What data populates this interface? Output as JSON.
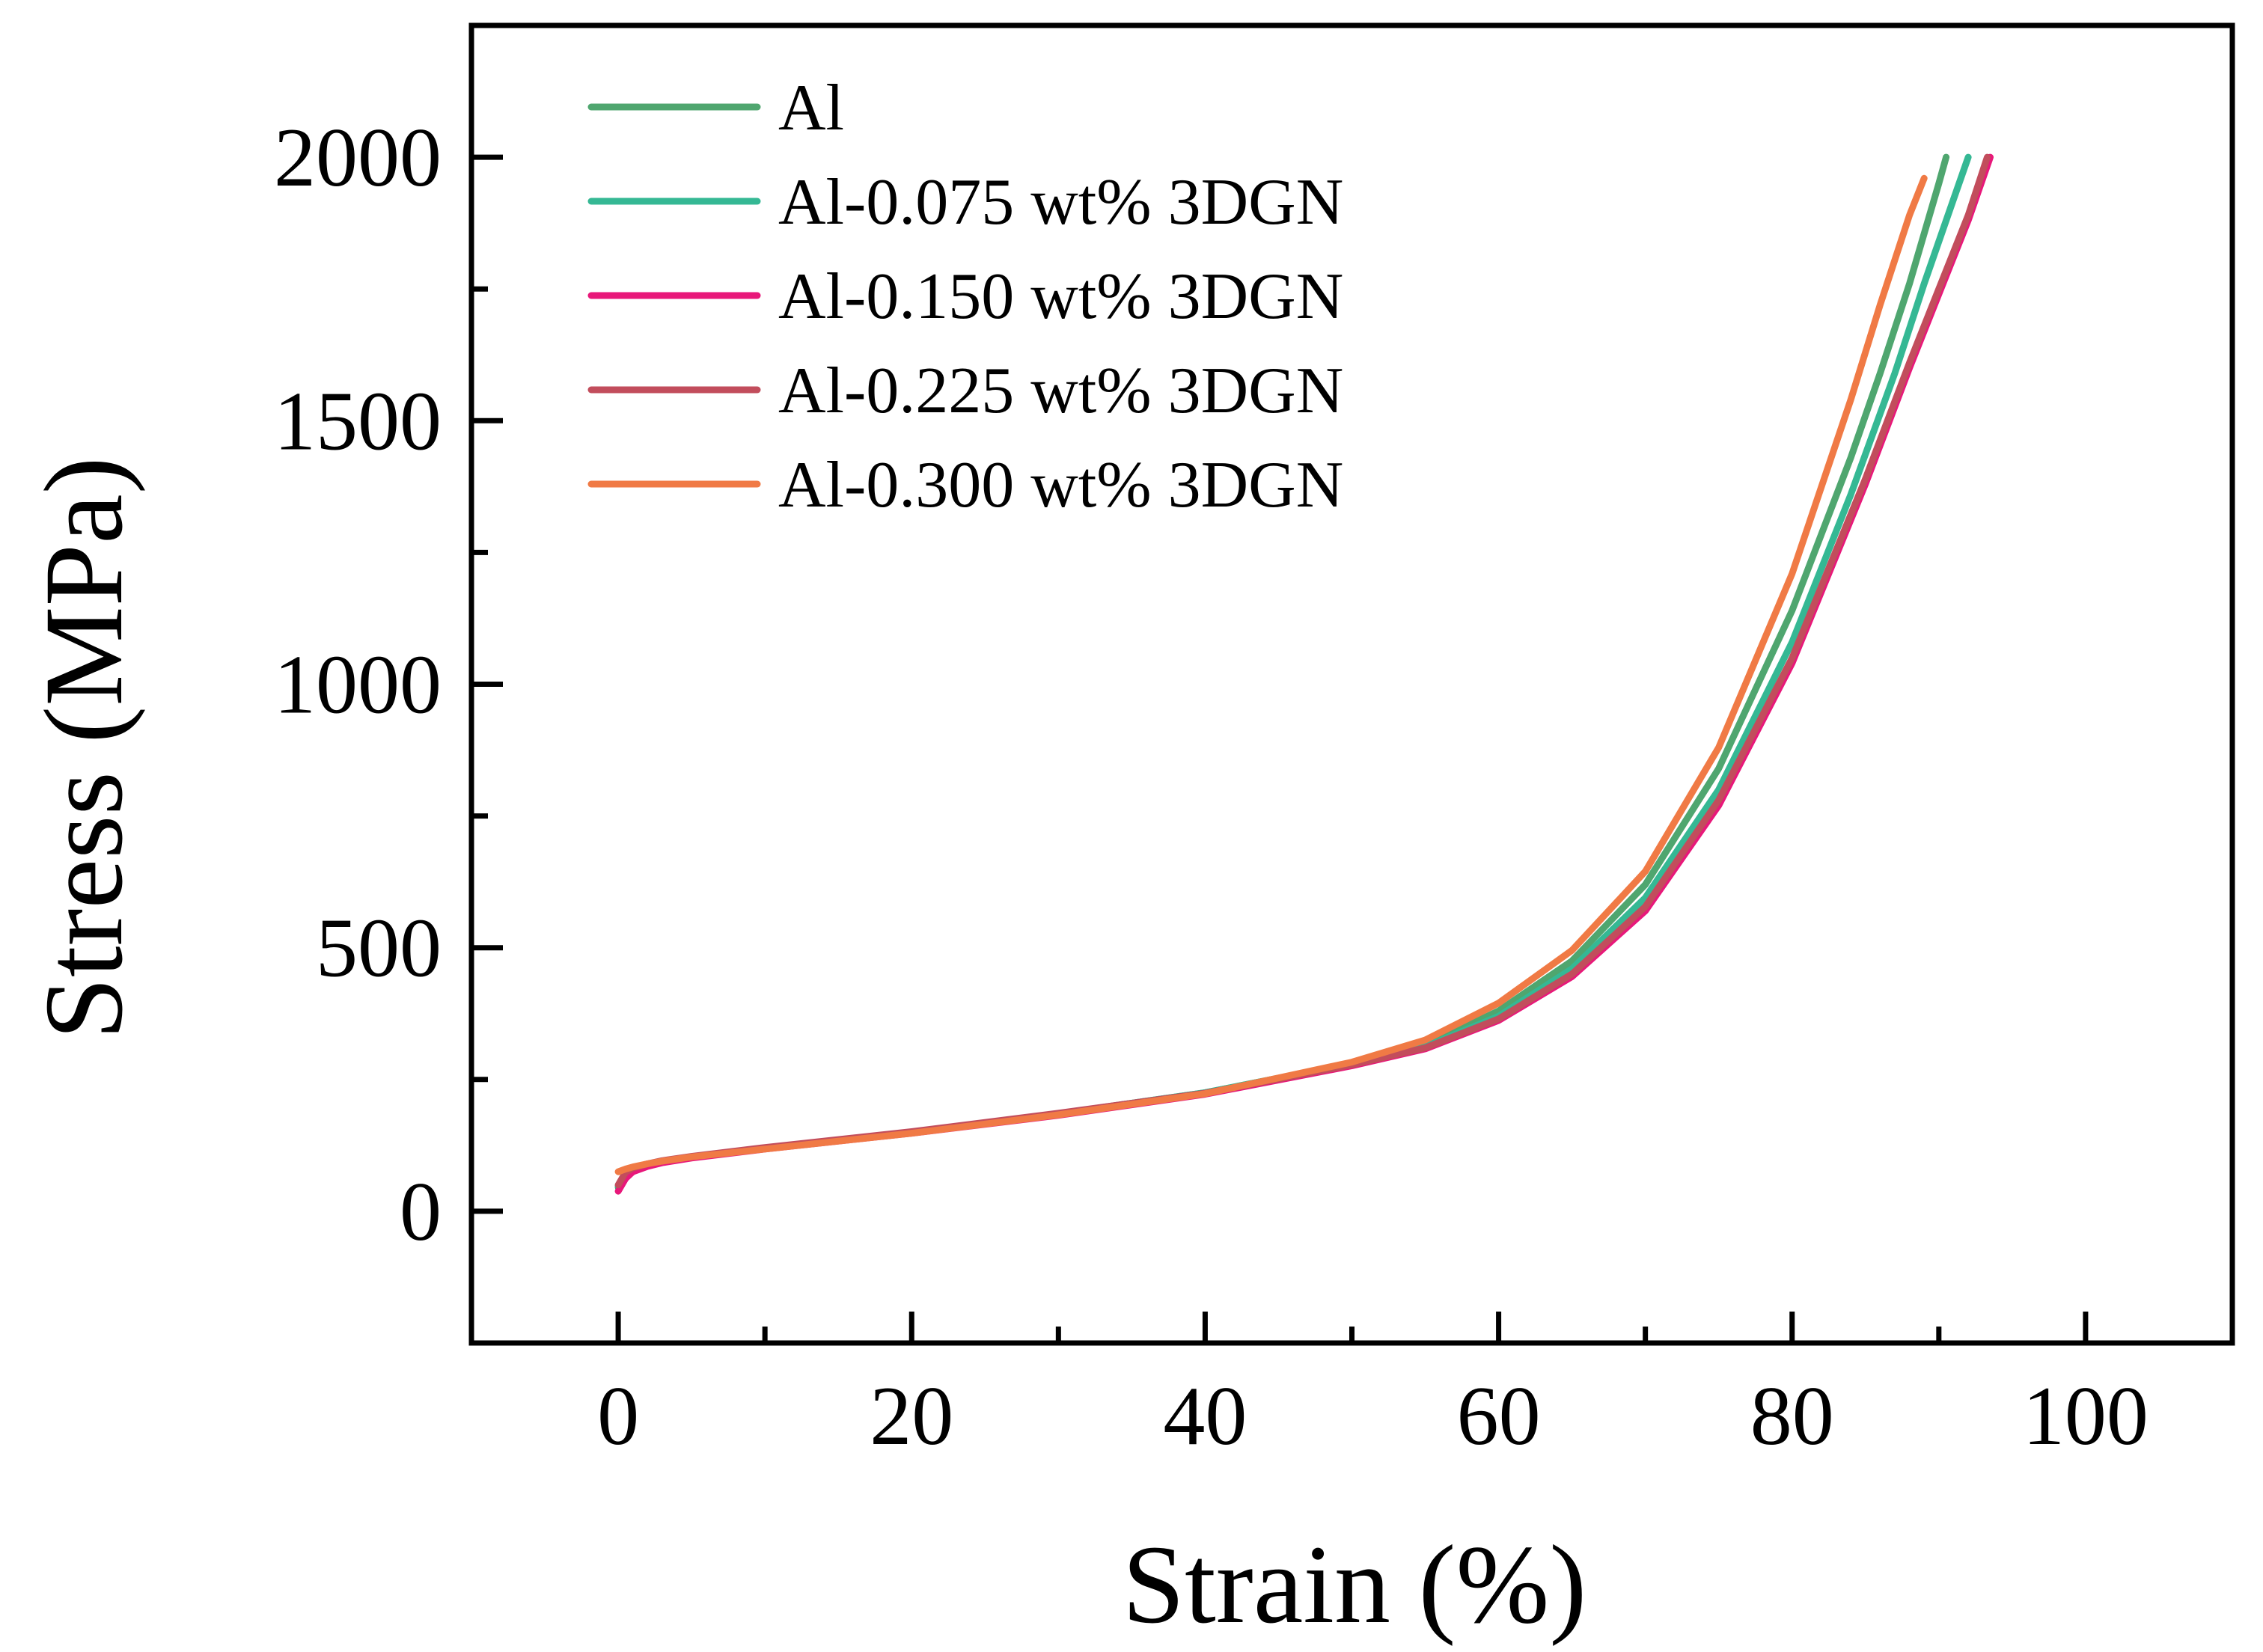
{
  "chart_data": {
    "type": "line",
    "title": "",
    "xlabel": "Strain (%)",
    "ylabel": "Stress (MPa)",
    "xlim": [
      -10,
      110
    ],
    "ylim": [
      -250,
      2250
    ],
    "xticks": [
      0,
      20,
      40,
      60,
      80,
      100
    ],
    "xtick_labels": [
      "0",
      "20",
      "40",
      "60",
      "80",
      "100"
    ],
    "yticks": [
      0,
      500,
      1000,
      1500,
      2000
    ],
    "ytick_labels": [
      "0",
      "500",
      "1000",
      "1500",
      "2000"
    ],
    "grid": false,
    "legend_position": "top-left",
    "series": [
      {
        "name": "Al",
        "color": "#4fa66f",
        "x": [
          0,
          0.5,
          1,
          2,
          3,
          5,
          10,
          20,
          30,
          40,
          50,
          55,
          60,
          65,
          70,
          75,
          80,
          84,
          86,
          88,
          90,
          90.5
        ],
        "y": [
          45,
          70,
          80,
          88,
          95,
          103,
          120,
          150,
          185,
          225,
          280,
          315,
          380,
          475,
          620,
          840,
          1140,
          1430,
          1590,
          1760,
          1950,
          2000
        ]
      },
      {
        "name": "Al-0.075 wt% 3DGN",
        "color": "#35b894",
        "x": [
          0,
          0.5,
          1,
          2,
          3,
          5,
          10,
          20,
          30,
          40,
          50,
          55,
          60,
          65,
          70,
          75,
          80,
          84,
          87,
          89,
          91,
          92
        ],
        "y": [
          48,
          72,
          81,
          89,
          95,
          103,
          120,
          150,
          185,
          225,
          280,
          312,
          370,
          460,
          595,
          800,
          1080,
          1360,
          1590,
          1760,
          1920,
          2000
        ]
      },
      {
        "name": "Al-0.150 wt% 3DGN",
        "color": "#e8187a",
        "x": [
          0,
          0.5,
          1,
          2,
          3,
          5,
          10,
          20,
          30,
          40,
          50,
          55,
          60,
          65,
          70,
          75,
          80,
          85,
          88,
          90,
          92,
          93.5
        ],
        "y": [
          38,
          62,
          75,
          85,
          92,
          101,
          118,
          148,
          182,
          222,
          276,
          308,
          362,
          445,
          570,
          770,
          1040,
          1380,
          1600,
          1740,
          1880,
          2000
        ]
      },
      {
        "name": "Al-0.225 wt% 3DGN",
        "color": "#c24d5c",
        "x": [
          0,
          0.5,
          1,
          2,
          3,
          5,
          10,
          20,
          30,
          40,
          50,
          55,
          60,
          65,
          70,
          75,
          80,
          85,
          88,
          90,
          92,
          93.3
        ],
        "y": [
          50,
          74,
          82,
          90,
          96,
          104,
          121,
          151,
          186,
          224,
          278,
          310,
          365,
          450,
          578,
          780,
          1050,
          1390,
          1610,
          1750,
          1890,
          2000
        ]
      },
      {
        "name": "Al-0.300 wt% 3DGN",
        "color": "#f07a45",
        "x": [
          0,
          0.5,
          1,
          2,
          3,
          5,
          10,
          20,
          30,
          40,
          50,
          55,
          60,
          65,
          70,
          75,
          80,
          84,
          86,
          88,
          89
        ],
        "y": [
          75,
          80,
          84,
          90,
          95,
          103,
          118,
          148,
          183,
          223,
          283,
          325,
          395,
          495,
          645,
          880,
          1210,
          1540,
          1720,
          1890,
          1960
        ]
      }
    ]
  }
}
